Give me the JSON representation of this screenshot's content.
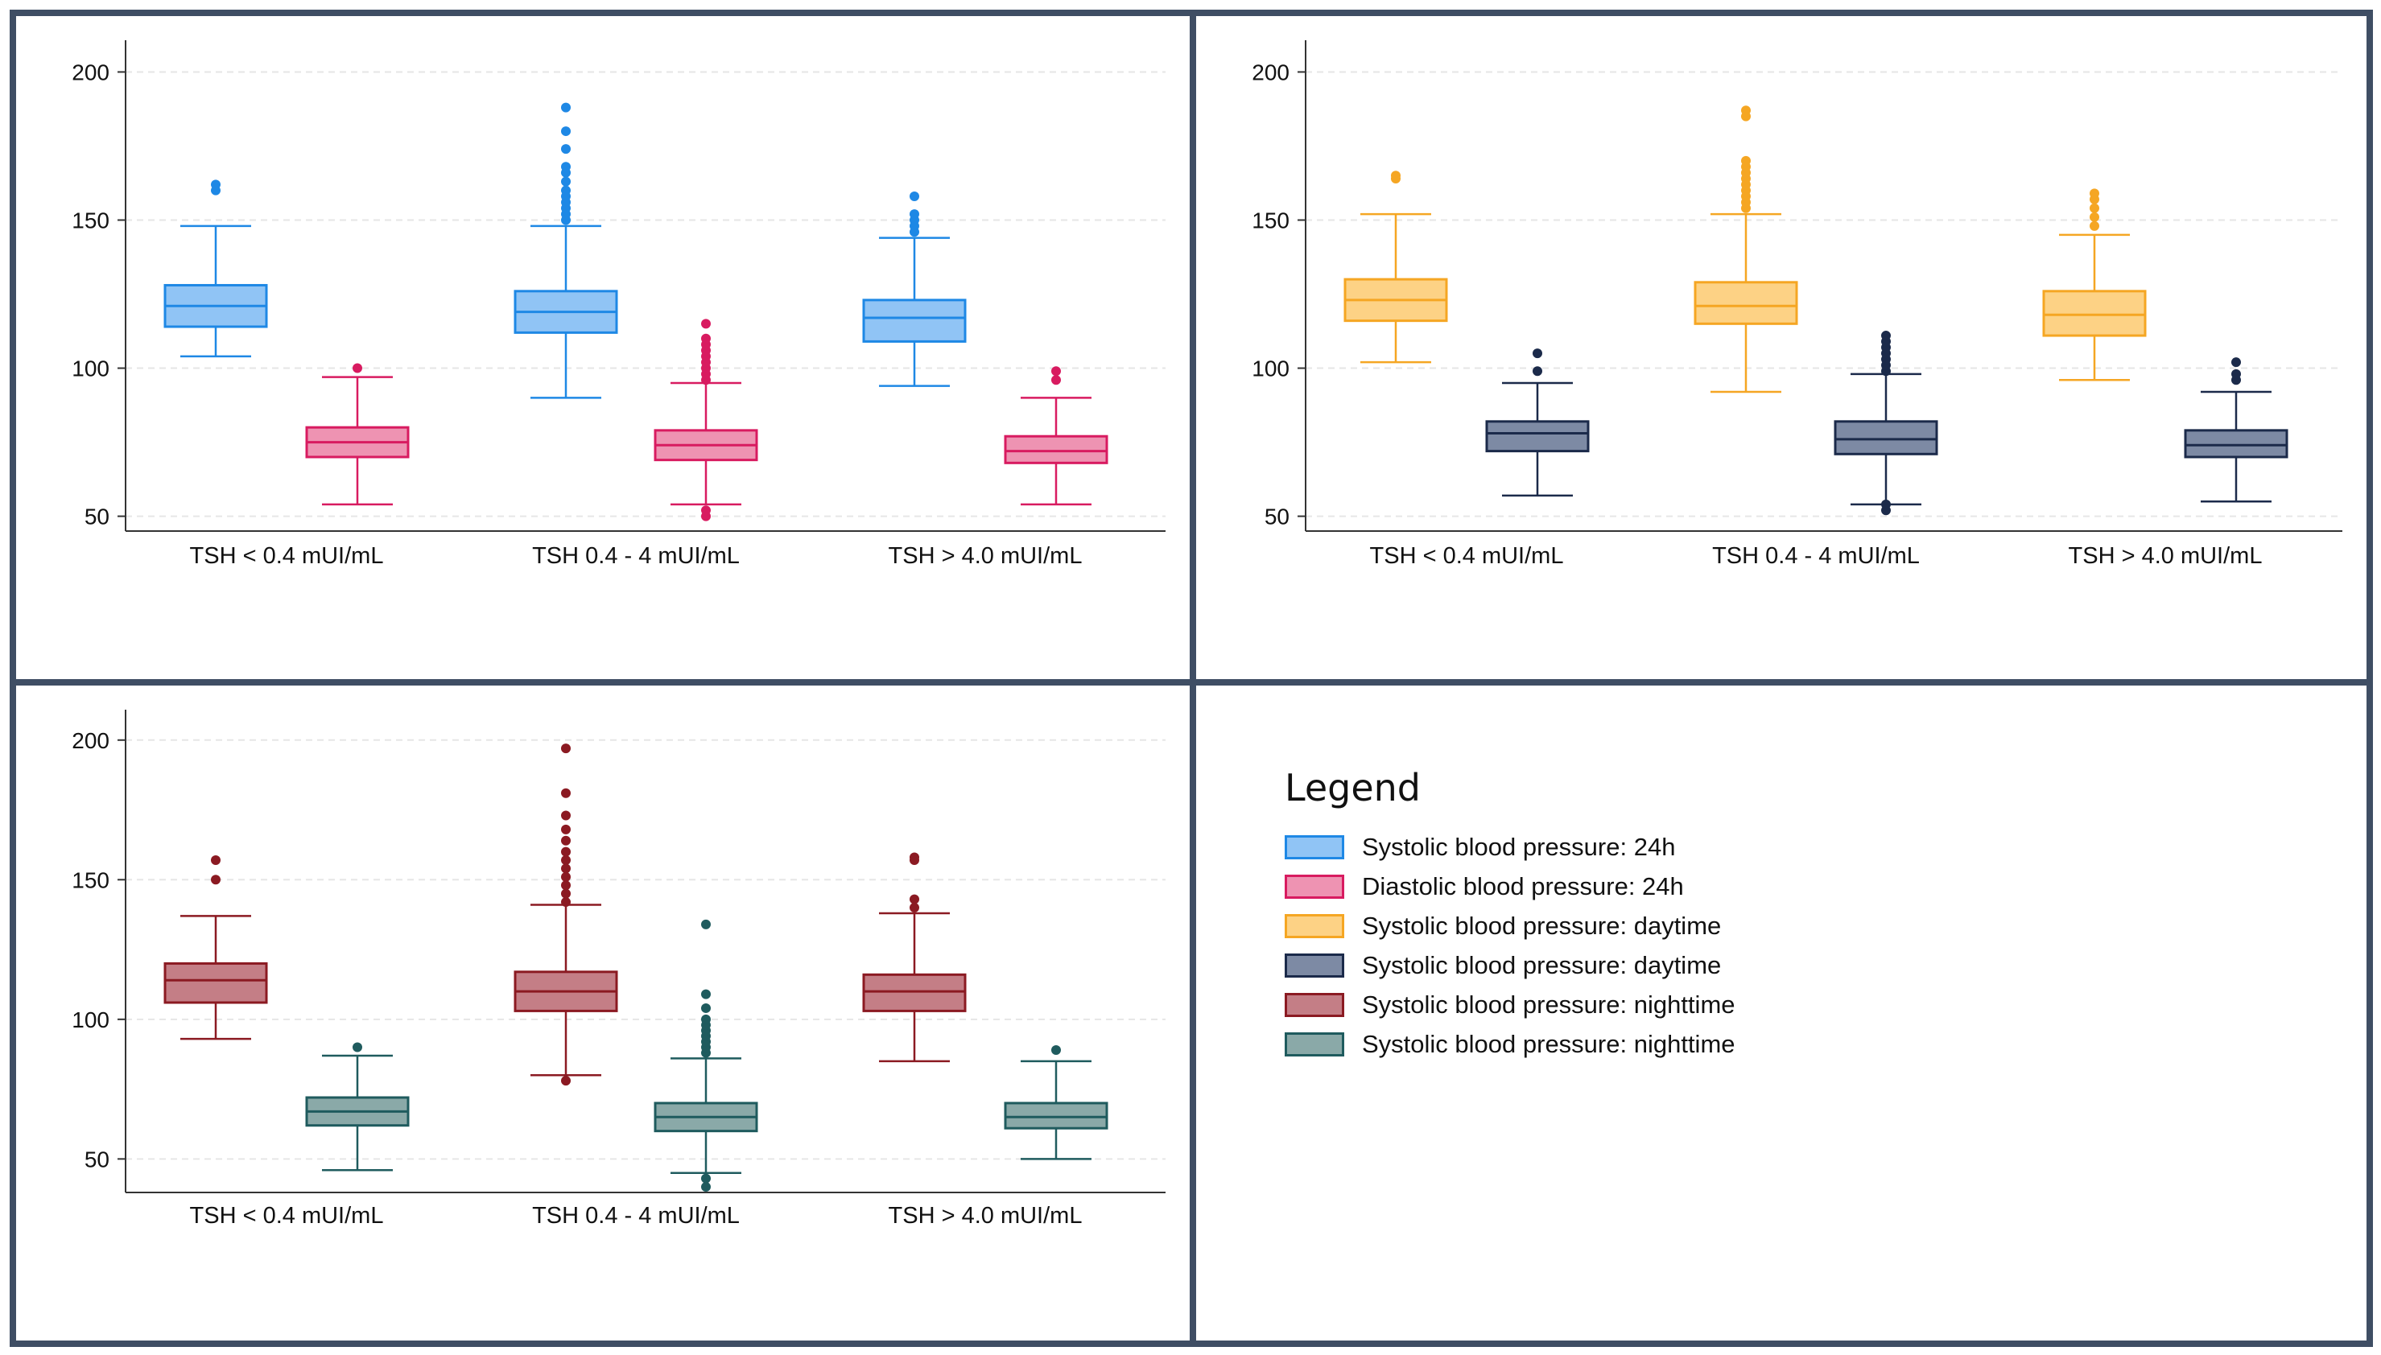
{
  "chart_data": [
    {
      "type": "boxplot",
      "panel": "top-left",
      "categories": [
        "TSH < 0.4 mUI/mL",
        "TSH 0.4 - 4 mUI/mL",
        "TSH > 4.0 mUI/mL"
      ],
      "ylim": [
        45,
        208
      ],
      "yticks": [
        50,
        100,
        150,
        200
      ],
      "grid": true,
      "series": [
        {
          "name": "Systolic blood pressure: 24h",
          "edge": "#1e88e5",
          "fill": "#90c4f5",
          "boxes": [
            {
              "whisker_low": 104,
              "q1": 114,
              "median": 121,
              "q3": 128,
              "whisker_high": 148,
              "outliers": [
                160,
                162
              ]
            },
            {
              "whisker_low": 90,
              "q1": 112,
              "median": 119,
              "q3": 126,
              "whisker_high": 148,
              "outliers": [
                150,
                152,
                154,
                156,
                158,
                160,
                163,
                166,
                168,
                174,
                180,
                188
              ]
            },
            {
              "whisker_low": 94,
              "q1": 109,
              "median": 117,
              "q3": 123,
              "whisker_high": 144,
              "outliers": [
                146,
                148,
                150,
                152,
                158
              ]
            }
          ]
        },
        {
          "name": "Diastolic blood pressure: 24h",
          "edge": "#d81b60",
          "fill": "#ee93b2",
          "boxes": [
            {
              "whisker_low": 54,
              "q1": 70,
              "median": 75,
              "q3": 80,
              "whisker_high": 97,
              "outliers": [
                100
              ]
            },
            {
              "whisker_low": 54,
              "q1": 69,
              "median": 74,
              "q3": 79,
              "whisker_high": 95,
              "outliers": [
                50,
                52,
                96,
                98,
                100,
                102,
                104,
                106,
                108,
                110,
                115
              ]
            },
            {
              "whisker_low": 54,
              "q1": 68,
              "median": 72,
              "q3": 77,
              "whisker_high": 90,
              "outliers": [
                96,
                99
              ]
            }
          ]
        }
      ]
    },
    {
      "type": "boxplot",
      "panel": "top-right",
      "categories": [
        "TSH < 0.4 mUI/mL",
        "TSH 0.4 - 4 mUI/mL",
        "TSH > 4.0 mUI/mL"
      ],
      "ylim": [
        45,
        208
      ],
      "yticks": [
        50,
        100,
        150,
        200
      ],
      "grid": true,
      "series": [
        {
          "name": "Systolic blood pressure: daytime",
          "edge": "#f5a623",
          "fill": "#fdd285",
          "boxes": [
            {
              "whisker_low": 102,
              "q1": 116,
              "median": 123,
              "q3": 130,
              "whisker_high": 152,
              "outliers": [
                164,
                165
              ]
            },
            {
              "whisker_low": 92,
              "q1": 115,
              "median": 121,
              "q3": 129,
              "whisker_high": 152,
              "outliers": [
                154,
                156,
                158,
                160,
                162,
                164,
                166,
                168,
                170,
                185,
                187
              ]
            },
            {
              "whisker_low": 96,
              "q1": 111,
              "median": 118,
              "q3": 126,
              "whisker_high": 145,
              "outliers": [
                148,
                151,
                154,
                157,
                159
              ]
            }
          ]
        },
        {
          "name": "Systolic blood pressure: daytime",
          "edge": "#1b2a4a",
          "fill": "#7d8aa4",
          "boxes": [
            {
              "whisker_low": 57,
              "q1": 72,
              "median": 78,
              "q3": 82,
              "whisker_high": 95,
              "outliers": [
                99,
                105
              ]
            },
            {
              "whisker_low": 54,
              "q1": 71,
              "median": 76,
              "q3": 82,
              "whisker_high": 98,
              "outliers": [
                52,
                54,
                99,
                101,
                103,
                105,
                107,
                109,
                111
              ]
            },
            {
              "whisker_low": 55,
              "q1": 70,
              "median": 74,
              "q3": 79,
              "whisker_high": 92,
              "outliers": [
                96,
                98,
                102
              ]
            }
          ]
        }
      ]
    },
    {
      "type": "boxplot",
      "panel": "bottom-left",
      "categories": [
        "TSH < 0.4 mUI/mL",
        "TSH 0.4 - 4 mUI/mL",
        "TSH > 4.0 mUI/mL"
      ],
      "ylim": [
        38,
        208
      ],
      "yticks": [
        50,
        100,
        150,
        200
      ],
      "grid": true,
      "series": [
        {
          "name": "Systolic blood pressure: nighttime",
          "edge": "#8b1a22",
          "fill": "#c47e86",
          "boxes": [
            {
              "whisker_low": 93,
              "q1": 106,
              "median": 114,
              "q3": 120,
              "whisker_high": 137,
              "outliers": [
                150,
                157
              ]
            },
            {
              "whisker_low": 80,
              "q1": 103,
              "median": 110,
              "q3": 117,
              "whisker_high": 141,
              "outliers": [
                78,
                142,
                145,
                148,
                151,
                154,
                157,
                160,
                164,
                168,
                173,
                181,
                197
              ]
            },
            {
              "whisker_low": 85,
              "q1": 103,
              "median": 110,
              "q3": 116,
              "whisker_high": 138,
              "outliers": [
                140,
                143,
                157,
                158
              ]
            }
          ]
        },
        {
          "name": "Systolic blood pressure: nighttime",
          "edge": "#1f5b5e",
          "fill": "#8aa9a8",
          "boxes": [
            {
              "whisker_low": 46,
              "q1": 62,
              "median": 67,
              "q3": 72,
              "whisker_high": 87,
              "outliers": [
                90
              ]
            },
            {
              "whisker_low": 45,
              "q1": 60,
              "median": 65,
              "q3": 70,
              "whisker_high": 86,
              "outliers": [
                40,
                43,
                88,
                90,
                92,
                94,
                96,
                98,
                100,
                104,
                109,
                134
              ]
            },
            {
              "whisker_low": 50,
              "q1": 61,
              "median": 65,
              "q3": 70,
              "whisker_high": 85,
              "outliers": [
                89
              ]
            }
          ]
        }
      ]
    }
  ],
  "legend": {
    "title": "Legend",
    "items": [
      {
        "label": "Systolic blood pressure: 24h",
        "edge": "#1e88e5",
        "fill": "#90c4f5"
      },
      {
        "label": "Diastolic blood pressure: 24h",
        "edge": "#d81b60",
        "fill": "#ee93b2"
      },
      {
        "label": "Systolic blood pressure: daytime",
        "edge": "#f5a623",
        "fill": "#fdd285"
      },
      {
        "label": "Systolic blood pressure: daytime",
        "edge": "#1b2a4a",
        "fill": "#7d8aa4"
      },
      {
        "label": "Systolic blood pressure: nighttime",
        "edge": "#8b1a22",
        "fill": "#c47e86"
      },
      {
        "label": "Systolic blood pressure: nighttime",
        "edge": "#1f5b5e",
        "fill": "#8aa9a8"
      }
    ]
  }
}
